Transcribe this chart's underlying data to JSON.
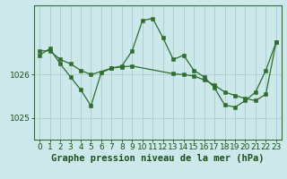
{
  "background_color": "#cce8ea",
  "grid_color": "#aacccc",
  "line_color": "#2d6e2d",
  "marker_color": "#2d6e2d",
  "title": "Graphe pression niveau de la mer (hPa)",
  "ylim": [
    1024.5,
    1027.6
  ],
  "xlim": [
    -0.5,
    23.5
  ],
  "yticks": [
    1025,
    1026
  ],
  "xticks": [
    0,
    1,
    2,
    3,
    4,
    5,
    6,
    7,
    8,
    9,
    10,
    11,
    12,
    13,
    14,
    15,
    16,
    17,
    18,
    19,
    20,
    21,
    22,
    23
  ],
  "series1_x": [
    0,
    1,
    2,
    3,
    4,
    5,
    6,
    7,
    8,
    9,
    10,
    11,
    12,
    13,
    14,
    15,
    16,
    17,
    18,
    19,
    20,
    21,
    22,
    23
  ],
  "series1_y": [
    1026.45,
    1026.6,
    1026.25,
    1025.95,
    1025.65,
    1025.28,
    1026.05,
    1026.15,
    1026.2,
    1026.55,
    1027.25,
    1027.3,
    1026.85,
    1026.35,
    1026.45,
    1026.1,
    1025.95,
    1025.7,
    1025.3,
    1025.25,
    1025.4,
    1025.6,
    1026.1,
    1026.75
  ],
  "series2_x": [
    0,
    1,
    2,
    3,
    4,
    5,
    7,
    8,
    9,
    13,
    14,
    15,
    16,
    17,
    18,
    19,
    20,
    21,
    22,
    23
  ],
  "series2_y": [
    1026.55,
    1026.55,
    1026.35,
    1026.25,
    1026.1,
    1026.0,
    1026.15,
    1026.18,
    1026.2,
    1026.02,
    1026.0,
    1025.97,
    1025.88,
    1025.76,
    1025.6,
    1025.52,
    1025.45,
    1025.4,
    1025.55,
    1026.75
  ],
  "title_fontsize": 7.5,
  "tick_fontsize": 6.5,
  "title_color": "#1a501a",
  "tick_color": "#1a501a",
  "spine_color": "#2d6e2d"
}
